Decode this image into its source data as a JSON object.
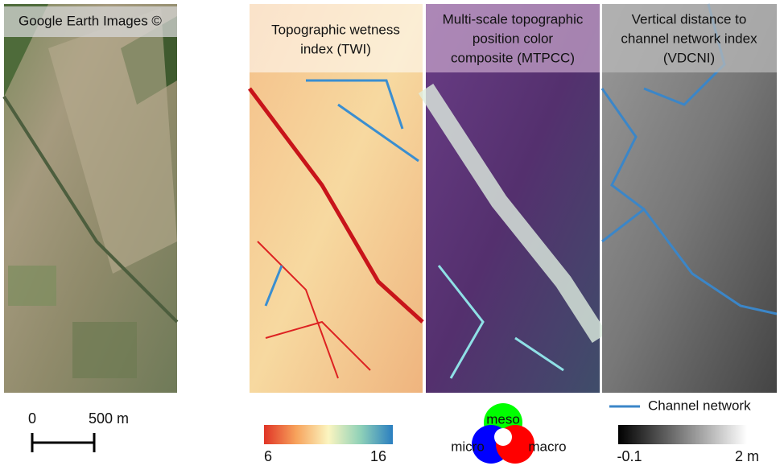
{
  "panels": [
    {
      "label_lines": [
        "Google Earth Images ©"
      ]
    },
    {
      "label_lines": [
        "Topographic wetness",
        "index (TWI)"
      ]
    },
    {
      "label_lines": [
        "Multi-scale topographic",
        "position color",
        "composite (MTPCC)"
      ]
    },
    {
      "label_lines": [
        "Vertical distance to",
        "channel network index",
        "(VDCNI)"
      ]
    }
  ],
  "scale_bar": {
    "start_label": "0",
    "end_label": "500 m"
  },
  "twi_colorbar": {
    "min_label": "6",
    "max_label": "16"
  },
  "mtpcc_legend": {
    "top": "meso",
    "left": "micro",
    "right": "macro"
  },
  "vdcni_colorbar": {
    "min_label": "-0.1",
    "max_label": "2 m"
  },
  "legend": {
    "channel_network": "Channel network"
  }
}
